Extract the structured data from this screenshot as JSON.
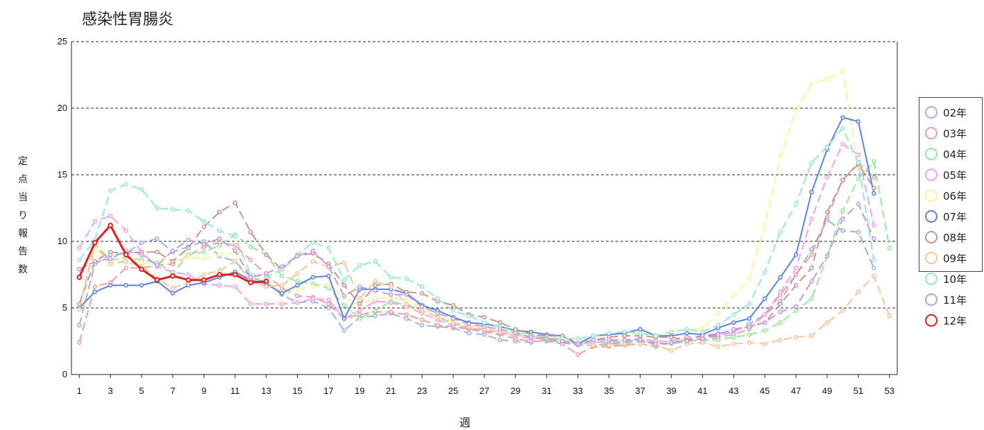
{
  "chart_data": {
    "type": "line",
    "title": "感染性胃腸炎",
    "xlabel": "週",
    "ylabel": "定点当り報告数",
    "ylim": [
      0,
      25
    ],
    "xlim": [
      1,
      53
    ],
    "yticks": [
      0,
      5,
      10,
      15,
      20,
      25
    ],
    "xticks": [
      1,
      3,
      5,
      7,
      9,
      11,
      13,
      15,
      17,
      19,
      21,
      23,
      25,
      27,
      29,
      31,
      33,
      35,
      37,
      39,
      41,
      43,
      45,
      47,
      49,
      51,
      53
    ],
    "grid": true,
    "legend_position": "right",
    "series": [
      {
        "name": "02年",
        "color": "#9fb1ea",
        "width": 2,
        "dash": "12,6",
        "values": [
          3.7,
          8.3,
          9.0,
          9.1,
          9.9,
          10.2,
          9.2,
          9.6,
          10.0,
          8.9,
          8.5,
          7.3,
          6.9,
          6.0,
          5.4,
          5.5,
          5.0,
          3.3,
          4.3,
          4.4,
          4.6,
          4.2,
          3.7,
          3.6,
          3.5,
          3.1,
          3.0,
          2.6,
          2.5,
          2.4,
          2.6,
          2.4,
          2.2,
          2.2,
          2.3,
          2.4,
          2.5,
          2.3,
          2.3,
          2.5,
          2.7,
          2.9,
          3.2,
          3.8,
          4.5,
          5.5,
          7.5,
          9.4,
          11.6,
          10.8,
          10.7,
          8.0,
          null
        ]
      },
      {
        "name": "03年",
        "color": "#ef9e9e",
        "width": 2,
        "dash": "12,6",
        "values": [
          2.4,
          6.6,
          6.9,
          8.0,
          8.0,
          8.2,
          8.3,
          8.9,
          9.6,
          9.9,
          9.7,
          8.6,
          7.5,
          6.5,
          5.9,
          5.8,
          5.3,
          4.2,
          4.5,
          4.7,
          4.7,
          4.5,
          4.1,
          3.7,
          3.6,
          3.4,
          3.2,
          3.0,
          2.7,
          2.5,
          2.5,
          2.3,
          1.5,
          2.1,
          2.1,
          2.2,
          2.3,
          2.1,
          2.4,
          2.6,
          2.5,
          2.8,
          3.0,
          3.4,
          4.5,
          6.0,
          7.5,
          9.0,
          11.8,
          14.6,
          15.9,
          14.8,
          null
        ]
      },
      {
        "name": "04年",
        "color": "#98e698",
        "width": 2,
        "dash": "12,6",
        "values": [
          5.0,
          9.8,
          8.6,
          8.8,
          8.6,
          8.4,
          7.6,
          9.0,
          9.2,
          9.7,
          10.5,
          9.6,
          9.0,
          7.4,
          7.0,
          6.8,
          6.5,
          5.2,
          4.2,
          4.8,
          5.5,
          5.2,
          4.8,
          4.3,
          3.8,
          3.6,
          3.4,
          3.2,
          3.0,
          2.8,
          2.6,
          2.5,
          2.3,
          2.4,
          2.4,
          2.5,
          2.6,
          2.4,
          2.3,
          2.5,
          2.6,
          2.6,
          2.8,
          3.0,
          3.3,
          3.9,
          4.8,
          5.7,
          8.9,
          12.3,
          14.7,
          16.0,
          9.5
        ]
      },
      {
        "name": "05年",
        "color": "#f2a0ec",
        "width": 2,
        "dash": "12,6",
        "values": [
          9.5,
          11.5,
          11.9,
          10.8,
          9.2,
          8.1,
          7.7,
          7.5,
          6.8,
          6.7,
          6.6,
          5.3,
          5.3,
          5.3,
          5.4,
          5.7,
          5.6,
          4.2,
          4.8,
          5.5,
          5.4,
          5.1,
          4.6,
          4.1,
          3.7,
          3.5,
          3.3,
          3.1,
          2.9,
          2.7,
          2.7,
          2.5,
          2.3,
          2.4,
          2.5,
          2.6,
          2.7,
          2.5,
          2.5,
          2.8,
          2.9,
          3.1,
          3.3,
          3.6,
          4.5,
          6.2,
          8.0,
          11.7,
          14.8,
          17.3,
          16.5,
          11.2,
          null
        ]
      },
      {
        "name": "06年",
        "color": "#f5f5a0",
        "width": 2,
        "dash": "12,6",
        "values": [
          5.0,
          9.4,
          8.5,
          8.5,
          8.4,
          8.3,
          8.5,
          8.8,
          8.7,
          9.0,
          9.2,
          7.4,
          7.0,
          6.2,
          6.4,
          6.6,
          6.7,
          5.8,
          5.2,
          5.7,
          5.8,
          5.6,
          5.0,
          4.4,
          4.0,
          3.7,
          3.5,
          3.3,
          3.1,
          2.9,
          2.8,
          2.6,
          2.4,
          2.6,
          2.8,
          3.0,
          3.0,
          2.8,
          3.0,
          3.4,
          3.5,
          4.6,
          5.9,
          7.2,
          11.2,
          16.4,
          19.8,
          21.8,
          22.2,
          22.8,
          15.5,
          null,
          null
        ]
      },
      {
        "name": "07年",
        "color": "#5b82e6",
        "width": 2,
        "dash": "",
        "values": [
          5.0,
          6.2,
          6.7,
          6.7,
          6.7,
          7.0,
          6.1,
          6.7,
          6.9,
          7.3,
          7.7,
          7.1,
          6.8,
          6.1,
          6.7,
          7.3,
          7.4,
          4.2,
          6.4,
          6.4,
          6.4,
          6.1,
          5.2,
          4.8,
          4.3,
          3.9,
          3.8,
          3.6,
          3.3,
          3.2,
          3.0,
          2.9,
          2.3,
          2.9,
          3.0,
          3.1,
          3.4,
          2.9,
          2.9,
          3.1,
          3.0,
          3.5,
          3.9,
          4.2,
          5.7,
          7.3,
          9.0,
          13.7,
          16.9,
          19.3,
          19.0,
          13.6,
          null
        ]
      },
      {
        "name": "08年",
        "color": "#c8948f",
        "width": 2,
        "dash": "12,6",
        "values": [
          5.3,
          8.5,
          9.2,
          9.1,
          9.2,
          9.2,
          8.5,
          9.5,
          11.1,
          12.2,
          12.9,
          10.7,
          9.0,
          7.9,
          8.9,
          9.1,
          8.3,
          6.7,
          5.3,
          6.7,
          6.8,
          6.2,
          6.1,
          5.5,
          5.2,
          4.5,
          4.3,
          3.9,
          3.4,
          3.0,
          2.9,
          2.9,
          2.3,
          2.6,
          2.8,
          2.9,
          2.9,
          2.8,
          2.8,
          2.6,
          2.9,
          3.0,
          3.4,
          3.6,
          3.9,
          5.3,
          6.7,
          8.0,
          12.2,
          14.6,
          15.8,
          14.0,
          null
        ]
      },
      {
        "name": "09年",
        "color": "#f5c498",
        "width": 2,
        "dash": "12,6",
        "values": [
          4.9,
          9.8,
          8.3,
          8.5,
          8.1,
          7.2,
          6.5,
          6.9,
          7.5,
          7.8,
          8.5,
          7.0,
          6.6,
          6.7,
          7.6,
          8.5,
          8.1,
          8.4,
          5.7,
          7.0,
          6.6,
          5.3,
          4.8,
          4.3,
          3.9,
          3.6,
          3.4,
          3.2,
          3.0,
          2.8,
          2.8,
          2.6,
          2.3,
          2.2,
          2.2,
          2.3,
          2.3,
          2.2,
          1.8,
          2.3,
          2.4,
          2.1,
          2.3,
          2.4,
          2.3,
          2.6,
          2.8,
          2.9,
          3.9,
          4.8,
          6.2,
          7.4,
          4.4
        ]
      },
      {
        "name": "10年",
        "color": "#98e8cc",
        "width": 2,
        "dash": "12,6",
        "values": [
          8.6,
          10.1,
          13.8,
          14.3,
          13.9,
          12.5,
          12.4,
          12.3,
          11.5,
          10.8,
          10.4,
          7.5,
          7.3,
          7.9,
          9.0,
          9.9,
          9.5,
          7.1,
          8.2,
          8.5,
          7.3,
          7.2,
          6.6,
          5.7,
          4.8,
          4.4,
          3.9,
          3.6,
          3.2,
          2.9,
          2.8,
          2.7,
          2.7,
          2.9,
          3.1,
          3.2,
          3.1,
          2.9,
          3.2,
          3.4,
          3.2,
          3.7,
          4.5,
          5.3,
          7.7,
          10.7,
          12.8,
          15.9,
          17.1,
          18.5,
          15.9,
          8.6,
          null
        ]
      },
      {
        "name": "11年",
        "color": "#be9ae8",
        "width": 2,
        "dash": "12,6",
        "values": [
          7.9,
          8.5,
          8.7,
          9.3,
          9.0,
          8.2,
          9.3,
          10.1,
          9.8,
          10.2,
          9.3,
          7.3,
          7.6,
          8.1,
          8.9,
          9.3,
          8.1,
          5.9,
          6.6,
          6.3,
          6.0,
          6.0,
          5.1,
          4.6,
          4.2,
          3.8,
          3.6,
          3.4,
          3.1,
          2.8,
          2.7,
          2.5,
          2.3,
          2.6,
          2.6,
          2.6,
          2.6,
          2.3,
          2.4,
          2.5,
          2.7,
          3.0,
          3.4,
          3.6,
          3.9,
          4.7,
          5.1,
          7.0,
          8.9,
          11.7,
          12.8,
          10.2,
          null
        ]
      },
      {
        "name": "12年",
        "color": "#e41c1c",
        "width": 3,
        "dash": "",
        "values": [
          7.3,
          9.9,
          11.2,
          9.0,
          7.9,
          7.1,
          7.4,
          7.1,
          7.1,
          7.5,
          7.5,
          6.9,
          7.0,
          null,
          null,
          null,
          null,
          null,
          null,
          null,
          null,
          null,
          null,
          null,
          null,
          null,
          null,
          null,
          null,
          null,
          null,
          null,
          null,
          null,
          null,
          null,
          null,
          null,
          null,
          null,
          null,
          null,
          null,
          null,
          null,
          null,
          null,
          null,
          null,
          null,
          null,
          null,
          null
        ]
      }
    ]
  }
}
